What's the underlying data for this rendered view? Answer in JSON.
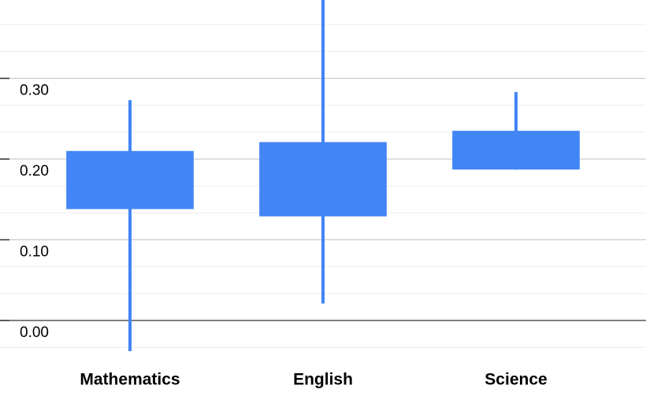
{
  "chart_data": {
    "type": "candlestick",
    "categories": [
      "Mathematics",
      "English",
      "Science"
    ],
    "series": [
      {
        "color": "#4285f4",
        "low": [
          -0.038,
          0.021,
          0.187
        ],
        "open": [
          0.138,
          0.129,
          0.187
        ],
        "close": [
          0.21,
          0.221,
          0.235
        ],
        "high": [
          0.273,
          0.4,
          0.283
        ]
      }
    ],
    "ylim": [
      -0.07,
      0.4
    ],
    "yticks": [
      {
        "value": 0,
        "label": "0.00"
      },
      {
        "value": 0.1,
        "label": "0.10"
      },
      {
        "value": 0.2,
        "label": "0.20"
      },
      {
        "value": 0.3,
        "label": "0.30"
      }
    ],
    "minor_yticks": [
      -0.0333,
      0.0333,
      0.0667,
      0.1333,
      0.1667,
      0.2333,
      0.2667,
      0.3333,
      0.3667
    ],
    "grid": true
  }
}
